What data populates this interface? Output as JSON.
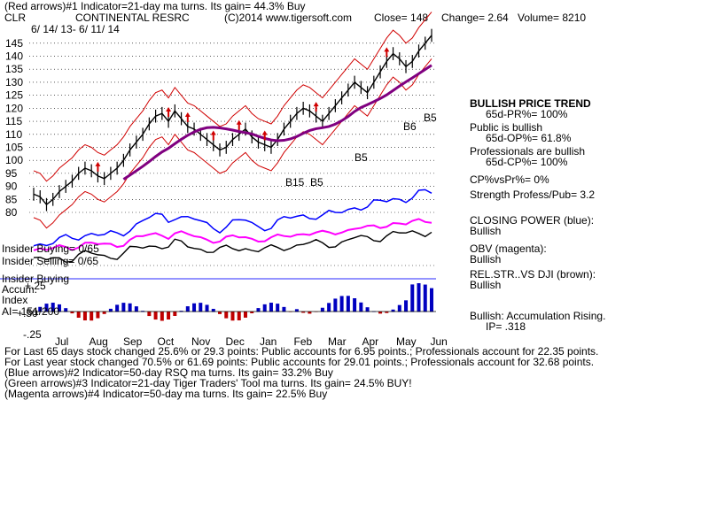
{
  "header": {
    "line1": "(Red arrows)#1 Indicator=21-day ma turns. Its gain= 44.3% Buy",
    "ticker": "CLR",
    "company": "CONTINENTAL RESRC",
    "copyright": "(C)2014 www.tigersoft.com",
    "close": "Close= 148",
    "change": "Change= 2.64",
    "volume": "Volume= 8210",
    "date_range": "6/ 14/ 13- 6/ 11/ 14"
  },
  "left_labels": {
    "insider_buying": "Insider Buying= 0/65",
    "insider_selling": "Insider Selling= 0/65",
    "insider_buying2": "Insider Buying",
    "accum_index": "Accum.",
    "index": "Index",
    "ai": "AI= 151/200"
  },
  "right_panel": {
    "trend_title": "BULLISH PRICE TREND",
    "pr": "65d-PR%= 100%",
    "public": "Public is bullish",
    "op": "65d-OP%= 61.8%",
    "professionals": "Professionals are bullish",
    "cp": "65d-CP%= 100%",
    "cpvspr": "CP%vsPr%= 0%",
    "strength": "Strength Profess/Pub= 3.2",
    "closing_power": "CLOSING POWER (blue):",
    "closing_power_val": "Bullish",
    "obv": "OBV (magenta):",
    "obv_val": "Bullish",
    "relstr": "REL.STR..VS DJI (brown):",
    "relstr_val": "Bullish",
    "accum": "Bullish: Accumulation Rising.",
    "ip": "IP= .318"
  },
  "footer": {
    "line1": "For Last 65 days stock changed 25.6% or 29.3 points: Public accounts for 6.95 points.; Professionals account for 22.35 points.",
    "line2": "For Last year stock changed 70.5% or 61.69 points: Public accounts for 29.01 points.; Professionals account for 32.68 points.",
    "line3": "(Blue arrows)#2 Indicator=50-day RSQ ma turns. Its gain= 33.2% Buy",
    "line4": "(Green arrows)#3 Indicator=21-day Tiger Traders' Tool ma turns. Its gain= 24.5% BUY!",
    "line5": "(Magenta arrows)#4 Indicator=50-day ma turns. Its gain= 22.5% Buy"
  },
  "chart_data": {
    "type": "line",
    "x_labels": [
      "Jul",
      "Aug",
      "Sep",
      "Oct",
      "Nov",
      "Dec",
      "Jan",
      "Feb",
      "Mar",
      "Apr",
      "May",
      "Jun"
    ],
    "price_ticks": [
      145,
      140,
      135,
      130,
      125,
      120,
      115,
      110,
      105,
      100,
      95,
      90,
      85,
      80
    ],
    "ylim": [
      80,
      148
    ],
    "accum_ticks": [
      "+.50",
      "+.25",
      "-.25"
    ],
    "signal_labels": [
      "B15",
      "B5",
      "B5",
      "B6",
      "B5"
    ],
    "price_series": {
      "name": "",
      "values": [
        87,
        86,
        83,
        85,
        88,
        90,
        92,
        95,
        97,
        96,
        94,
        93,
        95,
        97,
        100,
        104,
        107,
        110,
        114,
        117,
        118,
        115,
        119,
        116,
        113,
        112,
        110,
        108,
        106,
        104,
        105,
        108,
        110,
        112,
        109,
        107,
        106,
        105,
        108,
        112,
        115,
        118,
        120,
        119,
        117,
        115,
        118,
        121,
        124,
        127,
        130,
        128,
        126,
        130,
        134,
        138,
        141,
        139,
        136,
        138,
        142,
        145,
        148
      ]
    }
  }
}
